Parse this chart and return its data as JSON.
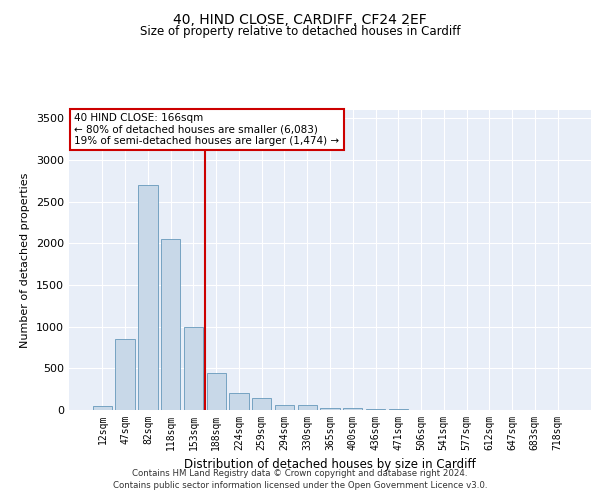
{
  "title1": "40, HIND CLOSE, CARDIFF, CF24 2EF",
  "title2": "Size of property relative to detached houses in Cardiff",
  "xlabel": "Distribution of detached houses by size in Cardiff",
  "ylabel": "Number of detached properties",
  "bar_color": "#c8d8e8",
  "bar_edge_color": "#6699bb",
  "vline_color": "#cc0000",
  "annotation_text": "40 HIND CLOSE: 166sqm\n← 80% of detached houses are smaller (6,083)\n19% of semi-detached houses are larger (1,474) →",
  "annotation_box_color": "#ffffff",
  "annotation_box_edge": "#cc0000",
  "categories": [
    "12sqm",
    "47sqm",
    "82sqm",
    "118sqm",
    "153sqm",
    "188sqm",
    "224sqm",
    "259sqm",
    "294sqm",
    "330sqm",
    "365sqm",
    "400sqm",
    "436sqm",
    "471sqm",
    "506sqm",
    "541sqm",
    "577sqm",
    "612sqm",
    "647sqm",
    "683sqm",
    "718sqm"
  ],
  "values": [
    50,
    850,
    2700,
    2050,
    1000,
    450,
    200,
    140,
    65,
    55,
    30,
    20,
    15,
    8,
    5,
    3,
    2,
    1,
    1,
    1,
    0
  ],
  "ylim": [
    0,
    3600
  ],
  "yticks": [
    0,
    500,
    1000,
    1500,
    2000,
    2500,
    3000,
    3500
  ],
  "vline_index": 4.5,
  "background_color": "#e8eef8",
  "footer1": "Contains HM Land Registry data © Crown copyright and database right 2024.",
  "footer2": "Contains public sector information licensed under the Open Government Licence v3.0."
}
